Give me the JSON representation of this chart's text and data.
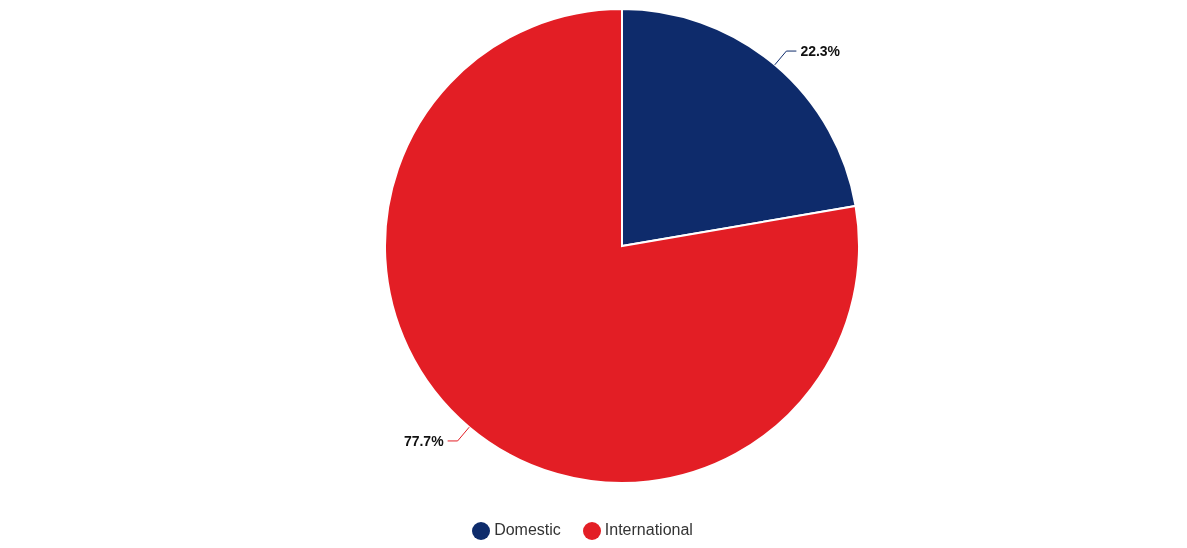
{
  "chart_data": {
    "type": "pie",
    "categories": [
      "Domestic",
      "International"
    ],
    "values": [
      22.3,
      77.7
    ],
    "colors": [
      "#0e2b6b",
      "#e31e25"
    ],
    "value_labels": [
      "22.3%",
      "77.7%"
    ],
    "legend": "bottom"
  }
}
